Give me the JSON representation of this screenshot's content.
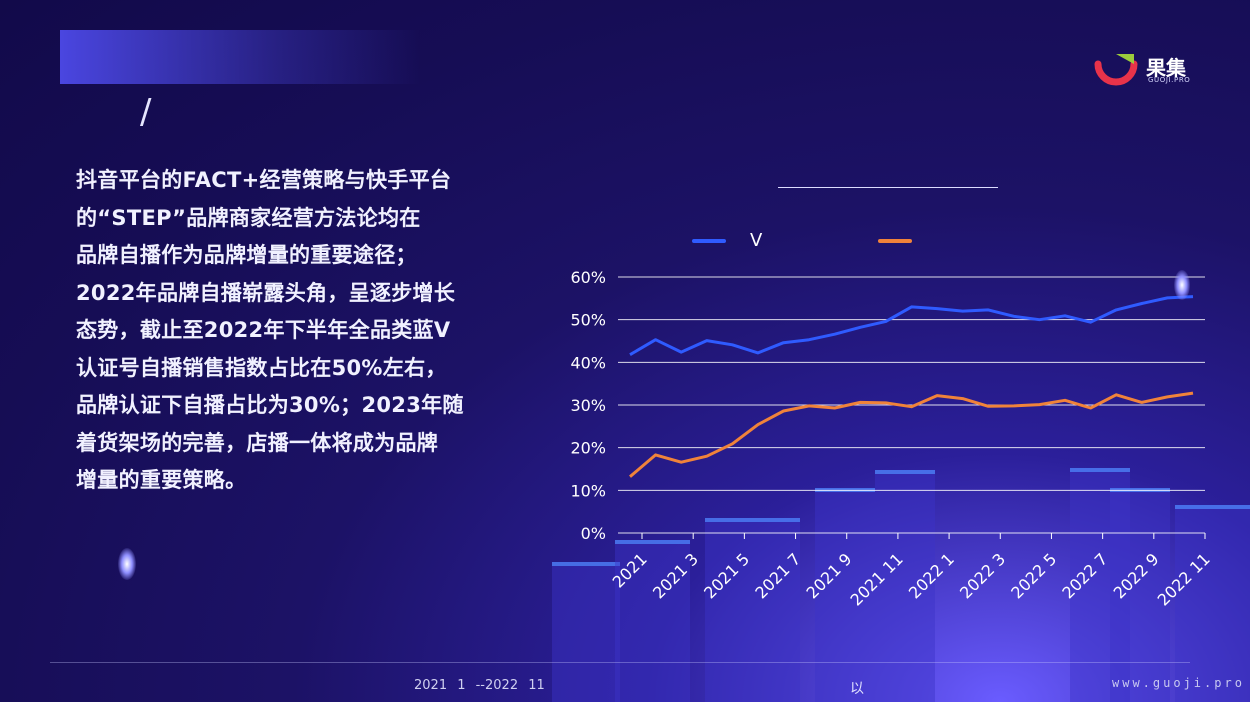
{
  "slide": {
    "slash": "/",
    "body_lines": [
      "抖音平台的FACT+经营策略与快手平台",
      "的“STEP”品牌商家经营方法论均在",
      "品牌自播作为品牌增量的重要途径；",
      "2022年品牌自播崭露头角，呈逐步增长",
      "态势，截止至2022年下半年全品类蓝V",
      "认证号自播销售指数占比在50%左右，",
      "品牌认证下自播占比为30%；2023年随",
      "着货架场的完善，店播一体将成为品牌",
      "增量的重要策略。"
    ]
  },
  "logo": {
    "name": "果集",
    "sub": "GUOJI.PRO",
    "colors": {
      "ring": "#e8334a",
      "leaf": "#9ccc3c"
    }
  },
  "footer": {
    "note": "2021 1 --2022 11",
    "mid": "以",
    "url": "www.guoji.pro"
  },
  "chart_data": {
    "type": "line",
    "title": "",
    "xlabel": "",
    "ylabel": "",
    "ylim": [
      0,
      60
    ],
    "yticks": [
      "0%",
      "10%",
      "20%",
      "30%",
      "40%",
      "50%",
      "60%"
    ],
    "grid": true,
    "legend_position": "top-left",
    "x_tick_labels": [
      "2021",
      "2021 3",
      "2021 5",
      "2021 7",
      "2021 9",
      "2021 11",
      "2022 1",
      "2022 3",
      "2022 5",
      "2022 7",
      "2022 9",
      "2022 11"
    ],
    "series": [
      {
        "name": "V",
        "color": "#2f5bff",
        "values": [
          41.8,
          45.3,
          42.4,
          45.1,
          44.1,
          42.2,
          44.6,
          45.3,
          46.6,
          48.2,
          49.6,
          53.0,
          52.6,
          52.0,
          52.3,
          50.8,
          50.0,
          50.9,
          49.4,
          52.3,
          53.8,
          55.1,
          55.4
        ]
      },
      {
        "name": "",
        "color": "#f0833a",
        "values": [
          13.2,
          18.3,
          16.6,
          18.0,
          20.9,
          25.4,
          28.6,
          29.8,
          29.3,
          30.6,
          30.5,
          29.6,
          32.2,
          31.5,
          29.7,
          29.8,
          30.1,
          31.1,
          29.3,
          32.4,
          30.6,
          31.9,
          32.8
        ]
      }
    ]
  }
}
